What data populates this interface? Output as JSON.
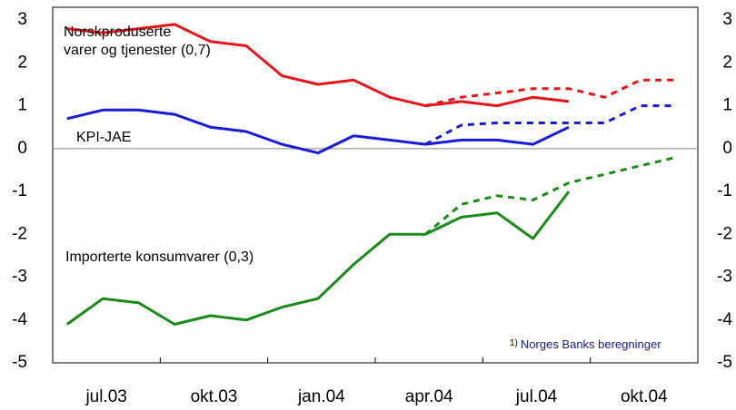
{
  "chart_data": {
    "type": "line",
    "categories": [
      "jul.03",
      null,
      null,
      "okt.03",
      null,
      null,
      "jan.04",
      null,
      null,
      "apr.04",
      null,
      null,
      "jul.04",
      null,
      null,
      "okt.04",
      null,
      null
    ],
    "series": [
      {
        "name": "Norskproduserte varer og tjenester (0,7)",
        "color": "#e8141b",
        "dashed": false,
        "values": [
          2.8,
          2.7,
          2.8,
          2.9,
          2.5,
          2.4,
          1.7,
          1.5,
          1.6,
          1.2,
          1.0,
          1.1,
          1.0,
          1.2,
          1.1,
          null,
          null,
          null
        ]
      },
      {
        "color": "#e8141b",
        "dashed": true,
        "values": [
          null,
          null,
          null,
          null,
          null,
          null,
          null,
          null,
          null,
          null,
          1.0,
          1.2,
          1.3,
          1.4,
          1.4,
          1.2,
          1.6,
          1.6
        ]
      },
      {
        "name": "KPI-JAE",
        "color": "#1a1adb",
        "dashed": false,
        "values": [
          0.7,
          0.9,
          0.9,
          0.8,
          0.5,
          0.4,
          0.1,
          -0.1,
          0.3,
          0.2,
          0.1,
          0.2,
          0.2,
          0.1,
          0.5,
          null,
          null,
          null
        ]
      },
      {
        "color": "#1a1adb",
        "dashed": true,
        "values": [
          null,
          null,
          null,
          null,
          null,
          null,
          null,
          null,
          null,
          null,
          0.1,
          0.55,
          0.6,
          0.6,
          0.6,
          0.6,
          1.0,
          1.0
        ]
      },
      {
        "name": "Importerte konsumvarer (0,3)",
        "color": "#1a8a1a",
        "dashed": false,
        "values": [
          -4.1,
          -3.5,
          -3.6,
          -4.1,
          -3.9,
          -4.0,
          -3.7,
          -3.5,
          -2.7,
          -2.0,
          -2.0,
          -1.6,
          -1.5,
          -2.1,
          -1.0,
          null,
          null,
          null
        ]
      },
      {
        "color": "#1a8a1a",
        "dashed": true,
        "values": [
          null,
          null,
          null,
          null,
          null,
          null,
          null,
          null,
          null,
          null,
          -2.0,
          -1.3,
          -1.1,
          -1.2,
          -0.8,
          -0.6,
          -0.4,
          -0.2
        ]
      }
    ],
    "ylim": [
      -5,
      3.3
    ],
    "yticks": [
      -5,
      -4,
      -3,
      -2,
      -1,
      0,
      1,
      2,
      3
    ],
    "y2lim": [
      -5,
      3.3
    ],
    "y2ticks": [
      -5,
      -4,
      -3,
      -2,
      -1,
      0,
      1,
      2,
      3
    ],
    "footnote": {
      "marker": "1)",
      "text": "Norges Banks beregninger"
    }
  }
}
